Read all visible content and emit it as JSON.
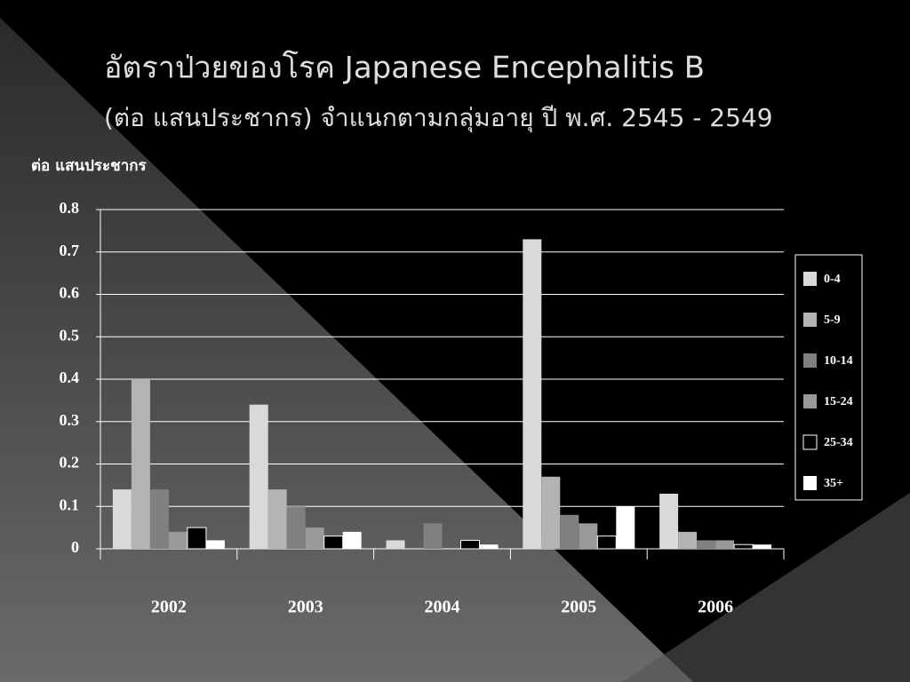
{
  "chart_data": {
    "type": "bar",
    "title": "อัตราป่วยของโรค Japanese Encephalitis B",
    "subtitle": "(ต่อ แสนประชากร) จำแนกตามกลุ่มอายุ ปี พ.ศ. 2545 - 2549",
    "y_label": "ต่อ แสนประชากร",
    "categories": [
      "2002",
      "2003",
      "2004",
      "2005",
      "2006"
    ],
    "series": [
      {
        "name": "0-4",
        "color": "#d9d9d9",
        "values": [
          0.14,
          0.34,
          0.02,
          0.73,
          0.13
        ]
      },
      {
        "name": "5-9",
        "color": "#b3b3b3",
        "values": [
          0.4,
          0.14,
          0,
          0.17,
          0.04
        ]
      },
      {
        "name": "10-14",
        "color": "#808080",
        "values": [
          0.14,
          0.1,
          0.06,
          0.08,
          0.02
        ]
      },
      {
        "name": "15-24",
        "color": "#999999",
        "values": [
          0.04,
          0.05,
          0,
          0.06,
          0.02
        ]
      },
      {
        "name": "25-34",
        "color": "#000000",
        "values": [
          0.05,
          0.03,
          0.02,
          0.03,
          0.01
        ]
      },
      {
        "name": "35+",
        "color": "#ffffff",
        "values": [
          0.02,
          0.04,
          0.01,
          0.1,
          0.01
        ]
      }
    ],
    "ylim": [
      0,
      0.8
    ],
    "yticks": [
      0,
      0.1,
      0.2,
      0.3,
      0.4,
      0.5,
      0.6,
      0.7,
      0.8
    ],
    "grid": true,
    "legend": "right"
  }
}
